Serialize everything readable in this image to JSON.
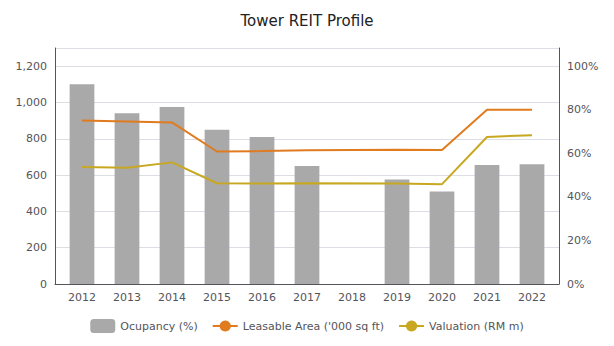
{
  "chart_data": {
    "type": "bar",
    "title": "Tower REIT Profile",
    "x": [
      2012,
      2013,
      2014,
      2015,
      2016,
      2017,
      2018,
      2019,
      2020,
      2021,
      2022
    ],
    "xlim": [
      2011.4,
      2022.6
    ],
    "xticks": [
      2012,
      2013,
      2014,
      2015,
      2016,
      2017,
      2018,
      2019,
      2020,
      2021,
      2022
    ],
    "ylim": [
      0,
      1300
    ],
    "yticks": [
      0,
      200,
      400,
      600,
      800,
      {
        "value": 1000,
        "label": "1,000"
      },
      {
        "value": 1200,
        "label": "1,200"
      }
    ],
    "y2lim": [
      0,
      108.33
    ],
    "y2ticks": [
      {
        "value": 0,
        "label": "0%"
      },
      {
        "value": 20,
        "label": "20%"
      },
      {
        "value": 40,
        "label": "40%"
      },
      {
        "value": 60,
        "label": "60%"
      },
      {
        "value": 80,
        "label": "80%"
      },
      {
        "value": 100,
        "label": "100%"
      }
    ],
    "grid": true,
    "legend": "bottom",
    "series": [
      {
        "name": "Ocupancy (%)",
        "type": "bar",
        "color": "#a9a9a9",
        "values": [
          1100,
          940,
          975,
          850,
          810,
          650,
          null,
          575,
          510,
          655,
          660
        ]
      },
      {
        "name": "Leasable Area ('000 sq ft)",
        "type": "line",
        "color": "#e07b20",
        "values": [
          900,
          895,
          890,
          730,
          732,
          737,
          null,
          740,
          738,
          960,
          960
        ]
      },
      {
        "name": "Valuation (RM m)",
        "type": "line",
        "color": "#c8a820",
        "values": [
          645,
          640,
          670,
          555,
          553,
          555,
          null,
          553,
          550,
          810,
          820
        ]
      }
    ]
  }
}
